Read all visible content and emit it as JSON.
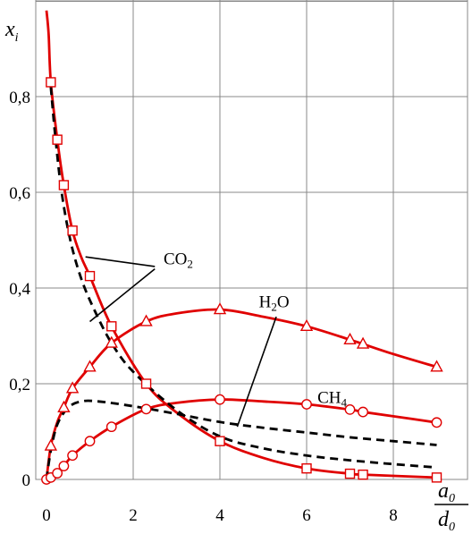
{
  "chart_data": {
    "type": "line",
    "xlabel": {
      "num": "a",
      "num_sub": "0",
      "den": "d",
      "den_sub": "0"
    },
    "ylabel": {
      "base": "x",
      "sub": "i"
    },
    "xlim": [
      0,
      9.3
    ],
    "ylim": [
      0,
      1.0
    ],
    "xticks": [
      {
        "v": 0,
        "label": "0"
      },
      {
        "v": 2,
        "label": "2"
      },
      {
        "v": 4,
        "label": "4"
      },
      {
        "v": 6,
        "label": "6"
      },
      {
        "v": 8,
        "label": "8"
      }
    ],
    "yticks": [
      {
        "v": 0,
        "label": "0"
      },
      {
        "v": 0.2,
        "label": "0,2"
      },
      {
        "v": 0.4,
        "label": "0,4"
      },
      {
        "v": 0.6,
        "label": "0,6"
      },
      {
        "v": 0.8,
        "label": "0,8"
      }
    ],
    "grid": true,
    "colors": {
      "model": "#e00000",
      "reference": "#000000"
    },
    "series": [
      {
        "marker": "square",
        "style": "solid",
        "color": "#e00000",
        "points": [
          [
            0,
            0.98
          ],
          [
            0.05,
            0.93
          ],
          [
            0.1,
            0.83
          ],
          [
            0.25,
            0.71
          ],
          [
            0.4,
            0.615
          ],
          [
            0.6,
            0.52
          ],
          [
            0.8,
            0.465
          ],
          [
            1.0,
            0.425
          ],
          [
            1.5,
            0.32
          ],
          [
            2.3,
            0.2
          ],
          [
            3.0,
            0.14
          ],
          [
            4.0,
            0.08
          ],
          [
            5.0,
            0.045
          ],
          [
            6.0,
            0.023
          ],
          [
            7.0,
            0.012
          ],
          [
            7.3,
            0.01
          ],
          [
            9.0,
            0.004
          ]
        ],
        "markers": [
          [
            0.1,
            0.83
          ],
          [
            0.25,
            0.71
          ],
          [
            0.4,
            0.615
          ],
          [
            0.6,
            0.52
          ],
          [
            1.0,
            0.425
          ],
          [
            1.5,
            0.32
          ],
          [
            2.3,
            0.2
          ],
          [
            4.0,
            0.08
          ],
          [
            6.0,
            0.023
          ],
          [
            7.0,
            0.012
          ],
          [
            7.3,
            0.01
          ],
          [
            9.0,
            0.004
          ]
        ]
      },
      {
        "marker": "triangle",
        "style": "solid",
        "color": "#e00000",
        "points": [
          [
            0,
            0
          ],
          [
            0.1,
            0.07
          ],
          [
            0.25,
            0.12
          ],
          [
            0.4,
            0.15
          ],
          [
            0.6,
            0.19
          ],
          [
            1.0,
            0.235
          ],
          [
            1.5,
            0.285
          ],
          [
            2.3,
            0.33
          ],
          [
            3.0,
            0.347
          ],
          [
            4.0,
            0.355
          ],
          [
            5.0,
            0.34
          ],
          [
            6.0,
            0.32
          ],
          [
            7.0,
            0.292
          ],
          [
            7.3,
            0.283
          ],
          [
            8.0,
            0.262
          ],
          [
            9.0,
            0.235
          ]
        ],
        "markers": [
          [
            0.1,
            0.07
          ],
          [
            0.4,
            0.15
          ],
          [
            0.6,
            0.19
          ],
          [
            1.0,
            0.235
          ],
          [
            1.5,
            0.285
          ],
          [
            2.3,
            0.33
          ],
          [
            4.0,
            0.355
          ],
          [
            6.0,
            0.32
          ],
          [
            7.0,
            0.292
          ],
          [
            7.3,
            0.283
          ],
          [
            9.0,
            0.235
          ]
        ]
      },
      {
        "marker": "circle",
        "style": "solid",
        "color": "#e00000",
        "points": [
          [
            0,
            0
          ],
          [
            0.1,
            0.004
          ],
          [
            0.25,
            0.013
          ],
          [
            0.4,
            0.028
          ],
          [
            0.6,
            0.05
          ],
          [
            1.0,
            0.08
          ],
          [
            1.5,
            0.11
          ],
          [
            2.3,
            0.147
          ],
          [
            3.0,
            0.16
          ],
          [
            4.0,
            0.167
          ],
          [
            5.0,
            0.163
          ],
          [
            6.0,
            0.157
          ],
          [
            7.0,
            0.146
          ],
          [
            7.3,
            0.141
          ],
          [
            8.0,
            0.132
          ],
          [
            9.0,
            0.119
          ]
        ],
        "markers": [
          [
            0,
            0
          ],
          [
            0.1,
            0.004
          ],
          [
            0.25,
            0.013
          ],
          [
            0.4,
            0.028
          ],
          [
            0.6,
            0.05
          ],
          [
            1.0,
            0.08
          ],
          [
            1.5,
            0.11
          ],
          [
            2.3,
            0.147
          ],
          [
            4.0,
            0.167
          ],
          [
            6.0,
            0.157
          ],
          [
            7.0,
            0.146
          ],
          [
            7.3,
            0.141
          ],
          [
            9.0,
            0.119
          ]
        ]
      },
      {
        "marker": "none",
        "style": "dashed",
        "color": "#000000",
        "points": [
          [
            0.1,
            0.82
          ],
          [
            0.2,
            0.72
          ],
          [
            0.35,
            0.6
          ],
          [
            0.55,
            0.5
          ],
          [
            0.8,
            0.42
          ],
          [
            1.1,
            0.355
          ],
          [
            1.5,
            0.285
          ],
          [
            2.0,
            0.225
          ],
          [
            3.0,
            0.145
          ],
          [
            4.0,
            0.09
          ],
          [
            5.0,
            0.065
          ],
          [
            6.0,
            0.05
          ],
          [
            7.0,
            0.04
          ],
          [
            8.0,
            0.032
          ],
          [
            9.0,
            0.025
          ]
        ],
        "markers": []
      },
      {
        "marker": "none",
        "style": "dashed",
        "color": "#000000",
        "points": [
          [
            0,
            0
          ],
          [
            0.1,
            0.06
          ],
          [
            0.25,
            0.115
          ],
          [
            0.5,
            0.15
          ],
          [
            0.8,
            0.163
          ],
          [
            1.2,
            0.163
          ],
          [
            2.0,
            0.153
          ],
          [
            3.0,
            0.137
          ],
          [
            4.0,
            0.12
          ],
          [
            5.0,
            0.108
          ],
          [
            6.0,
            0.098
          ],
          [
            7.0,
            0.088
          ],
          [
            8.0,
            0.08
          ],
          [
            9.0,
            0.072
          ]
        ],
        "markers": []
      }
    ],
    "annotations": [
      {
        "base": "CO",
        "sub": "2",
        "at": [
          2.7,
          0.45
        ],
        "leaders": [
          [
            [
              0.9,
              0.465
            ],
            [
              2.5,
              0.445
            ]
          ],
          [
            [
              1.0,
              0.33
            ],
            [
              2.5,
              0.44
            ]
          ]
        ]
      },
      {
        "base": "H",
        "sub": "2",
        "tail": "O",
        "at": [
          4.9,
          0.36
        ],
        "leaders": [
          [
            [
              5.3,
              0.34
            ],
            [
              4.4,
              0.11
            ]
          ]
        ]
      },
      {
        "base": "CH",
        "sub": "4",
        "at": [
          6.25,
          0.16
        ],
        "leaders": []
      }
    ]
  }
}
